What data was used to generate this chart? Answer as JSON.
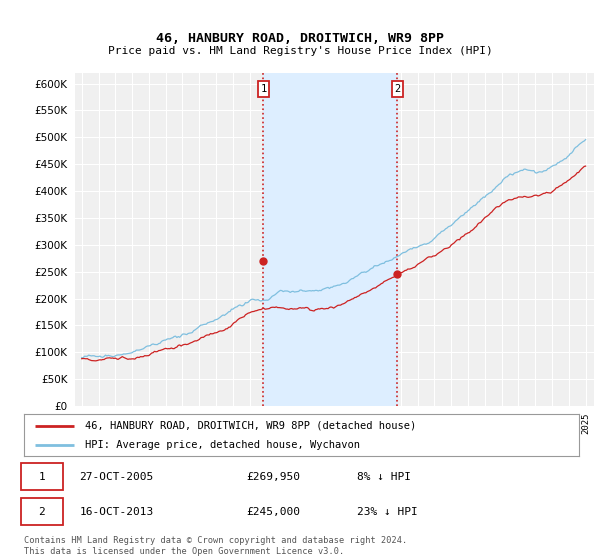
{
  "title": "46, HANBURY ROAD, DROITWICH, WR9 8PP",
  "subtitle": "Price paid vs. HM Land Registry's House Price Index (HPI)",
  "ylim": [
    0,
    620000
  ],
  "yticks": [
    0,
    50000,
    100000,
    150000,
    200000,
    250000,
    300000,
    350000,
    400000,
    450000,
    500000,
    550000,
    600000
  ],
  "hpi_color": "#7fbfdf",
  "price_color": "#cc2222",
  "annotation_box_color": "#cc2222",
  "shading_color": "#ddeeff",
  "marker1_date": 2005.82,
  "marker1_price": 269950,
  "marker2_date": 2013.79,
  "marker2_price": 245000,
  "legend_label1": "46, HANBURY ROAD, DROITWICH, WR9 8PP (detached house)",
  "legend_label2": "HPI: Average price, detached house, Wychavon",
  "footer": "Contains HM Land Registry data © Crown copyright and database right 2024.\nThis data is licensed under the Open Government Licence v3.0.",
  "background_color": "#ffffff",
  "plot_bg_color": "#f0f0f0"
}
